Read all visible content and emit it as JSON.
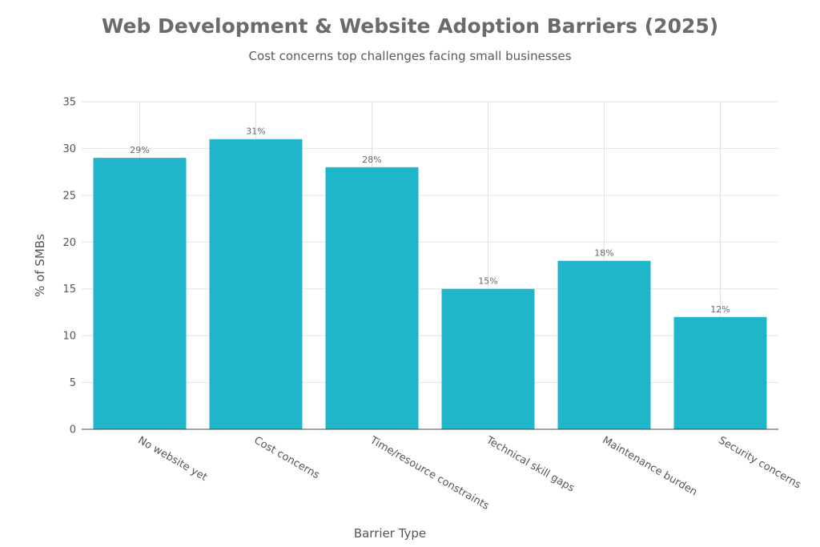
{
  "chart_data": {
    "type": "bar",
    "title": "Web Development & Website Adoption Barriers (2025)",
    "subtitle": "Cost concerns top challenges facing small businesses",
    "xlabel": "Barrier Type",
    "ylabel": "% of SMBs",
    "categories": [
      "No website yet",
      "Cost concerns",
      "Time/resource constraints",
      "Technical skill gaps",
      "Maintenance burden",
      "Security concerns"
    ],
    "values": [
      29,
      31,
      28,
      15,
      18,
      12
    ],
    "data_labels": [
      "29%",
      "31%",
      "28%",
      "15%",
      "18%",
      "12%"
    ],
    "yticks": [
      0,
      5,
      10,
      15,
      20,
      25,
      30,
      35
    ],
    "ylim": [
      0,
      35
    ],
    "grid": true,
    "legend": "none",
    "colors": {
      "bar": "#20b6ca",
      "grid": "#e3e3e3",
      "axis": "#444444"
    }
  }
}
